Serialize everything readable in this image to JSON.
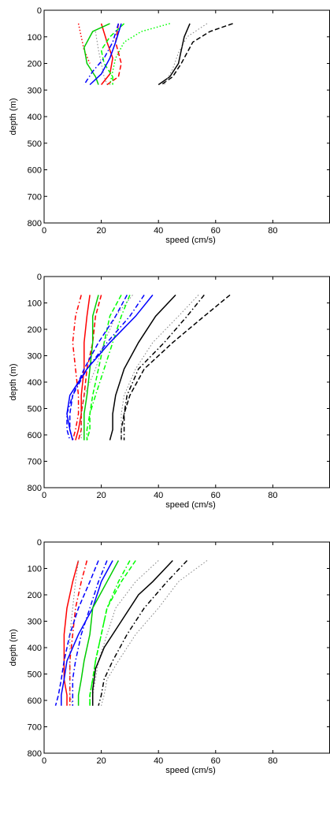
{
  "chart_data": [
    {
      "type": "line",
      "xlabel": "speed (cm/s)",
      "ylabel": "depth (m)",
      "xlim": [
        0,
        100
      ],
      "ylim": [
        0,
        800
      ],
      "y_inverted": true,
      "xticks": [
        "0",
        "20",
        "40",
        "60",
        "80"
      ],
      "yticks": [
        "0",
        "100",
        "200",
        "300",
        "400",
        "500",
        "600",
        "700",
        "800"
      ],
      "series": [
        {
          "color": "#ff0000",
          "style": "dotted",
          "x": [
            12,
            13,
            14,
            16
          ],
          "y": [
            50,
            100,
            150,
            200
          ]
        },
        {
          "color": "#ff0000",
          "style": "solid",
          "x": [
            20,
            22,
            24,
            23,
            20
          ],
          "y": [
            50,
            120,
            180,
            240,
            280
          ]
        },
        {
          "color": "#ff0000",
          "style": "dashed",
          "x": [
            26,
            25,
            27,
            26,
            22
          ],
          "y": [
            50,
            120,
            200,
            250,
            280
          ]
        },
        {
          "color": "#00cc00",
          "style": "solid",
          "x": [
            23,
            17,
            14,
            15,
            18,
            19
          ],
          "y": [
            50,
            80,
            140,
            200,
            250,
            280
          ]
        },
        {
          "color": "#00ff00",
          "style": "dashed",
          "x": [
            28,
            23,
            20,
            21,
            24,
            24
          ],
          "y": [
            50,
            100,
            150,
            200,
            250,
            280
          ]
        },
        {
          "color": "#00ff00",
          "style": "dotted",
          "x": [
            44,
            34,
            28,
            25,
            24,
            23
          ],
          "y": [
            50,
            80,
            120,
            180,
            230,
            280
          ]
        },
        {
          "color": "#0000ff",
          "style": "solid",
          "x": [
            27,
            25,
            23,
            20,
            16
          ],
          "y": [
            50,
            120,
            180,
            240,
            280
          ]
        },
        {
          "color": "#0000ff",
          "style": "dashdot",
          "x": [
            26,
            24,
            21,
            17,
            14
          ],
          "y": [
            50,
            120,
            180,
            230,
            280
          ]
        },
        {
          "color": "#808080",
          "style": "dotted",
          "x": [
            18,
            19,
            20,
            21,
            22
          ],
          "y": [
            80,
            150,
            200,
            250,
            280
          ]
        },
        {
          "color": "#000000",
          "style": "solid",
          "x": [
            51,
            49,
            48,
            47,
            44,
            40
          ],
          "y": [
            50,
            100,
            150,
            200,
            250,
            280
          ]
        },
        {
          "color": "#000000",
          "style": "dashed",
          "x": [
            66,
            58,
            52,
            50,
            48,
            45,
            41
          ],
          "y": [
            50,
            80,
            120,
            160,
            200,
            250,
            280
          ]
        },
        {
          "color": "#808080",
          "style": "dotted",
          "x": [
            57,
            50,
            47,
            45,
            42
          ],
          "y": [
            50,
            100,
            160,
            220,
            280
          ]
        }
      ]
    },
    {
      "type": "line",
      "xlabel": "speed (cm/s)",
      "ylabel": "depth (m)",
      "xlim": [
        0,
        100
      ],
      "ylim": [
        0,
        800
      ],
      "y_inverted": true,
      "xticks": [
        "0",
        "20",
        "40",
        "60",
        "80"
      ],
      "yticks": [
        "0",
        "100",
        "200",
        "300",
        "400",
        "500",
        "600",
        "700",
        "800"
      ],
      "series": [
        {
          "color": "#ff0000",
          "style": "dashdot",
          "x": [
            13,
            11,
            10,
            11,
            12,
            12,
            11,
            10
          ],
          "y": [
            70,
            150,
            250,
            350,
            450,
            520,
            580,
            620
          ]
        },
        {
          "color": "#ff0000",
          "style": "solid",
          "x": [
            16,
            15,
            14,
            14,
            13,
            13,
            12,
            11
          ],
          "y": [
            70,
            150,
            250,
            350,
            450,
            520,
            580,
            620
          ]
        },
        {
          "color": "#ff0000",
          "style": "dashed",
          "x": [
            20,
            18,
            17,
            15,
            14,
            13,
            13,
            12
          ],
          "y": [
            70,
            150,
            250,
            350,
            450,
            520,
            580,
            620
          ]
        },
        {
          "color": "#00cc00",
          "style": "solid",
          "x": [
            19,
            17,
            17,
            16,
            15,
            14,
            14,
            14
          ],
          "y": [
            70,
            150,
            250,
            350,
            450,
            520,
            580,
            620
          ]
        },
        {
          "color": "#00ff00",
          "style": "dashed",
          "x": [
            27,
            23,
            21,
            19,
            17,
            16,
            16,
            15
          ],
          "y": [
            70,
            150,
            250,
            350,
            450,
            520,
            580,
            620
          ]
        },
        {
          "color": "#808080",
          "style": "dotted",
          "x": [
            31,
            25,
            21,
            18,
            14,
            13,
            13,
            13
          ],
          "y": [
            70,
            150,
            250,
            350,
            450,
            520,
            580,
            620
          ]
        },
        {
          "color": "#00ff00",
          "style": "dashdot",
          "x": [
            30,
            27,
            24,
            21,
            18,
            16,
            15,
            15
          ],
          "y": [
            70,
            150,
            250,
            350,
            450,
            520,
            580,
            620
          ]
        },
        {
          "color": "#0000ff",
          "style": "solid",
          "x": [
            38,
            32,
            23,
            15,
            9,
            8,
            9,
            10
          ],
          "y": [
            70,
            150,
            250,
            350,
            450,
            520,
            580,
            620
          ]
        },
        {
          "color": "#0000ff",
          "style": "dashdot",
          "x": [
            35,
            30,
            22,
            15,
            10,
            8,
            8,
            9
          ],
          "y": [
            70,
            150,
            250,
            350,
            450,
            520,
            580,
            620
          ]
        },
        {
          "color": "#0000ff",
          "style": "dashed",
          "x": [
            29,
            25,
            19,
            14,
            10,
            9,
            9,
            10
          ],
          "y": [
            70,
            150,
            250,
            350,
            450,
            520,
            580,
            620
          ]
        },
        {
          "color": "#000000",
          "style": "solid",
          "x": [
            46,
            39,
            33,
            28,
            25,
            24,
            24,
            23
          ],
          "y": [
            70,
            150,
            250,
            350,
            450,
            520,
            580,
            620
          ]
        },
        {
          "color": "#000000",
          "style": "dashed",
          "x": [
            65,
            56,
            45,
            35,
            30,
            28,
            27,
            27
          ],
          "y": [
            70,
            150,
            250,
            350,
            450,
            520,
            580,
            620
          ]
        },
        {
          "color": "#000000",
          "style": "dashdot",
          "x": [
            56,
            50,
            42,
            33,
            29,
            28,
            28,
            28
          ],
          "y": [
            70,
            150,
            250,
            350,
            450,
            520,
            580,
            620
          ]
        },
        {
          "color": "#808080",
          "style": "dotted",
          "x": [
            54,
            47,
            38,
            32,
            28,
            27,
            27,
            27
          ],
          "y": [
            70,
            150,
            250,
            350,
            450,
            520,
            580,
            620
          ]
        }
      ]
    },
    {
      "type": "line",
      "xlabel": "speed (cm/s)",
      "ylabel": "depth (m)",
      "xlim": [
        0,
        100
      ],
      "ylim": [
        0,
        800
      ],
      "y_inverted": true,
      "xticks": [
        "0",
        "20",
        "40",
        "60",
        "80"
      ],
      "yticks": [
        "0",
        "100",
        "200",
        "300",
        "400",
        "500",
        "600",
        "700",
        "800"
      ],
      "series": [
        {
          "color": "#ff0000",
          "style": "solid",
          "x": [
            12,
            10,
            8,
            7,
            7,
            7,
            8,
            8
          ],
          "y": [
            70,
            150,
            250,
            350,
            450,
            520,
            580,
            620
          ]
        },
        {
          "color": "#ff0000",
          "style": "dashdot",
          "x": [
            15,
            13,
            11,
            10,
            9,
            9,
            9,
            9
          ],
          "y": [
            70,
            150,
            250,
            350,
            450,
            520,
            580,
            620
          ]
        },
        {
          "color": "#0000ff",
          "style": "dashed",
          "x": [
            19,
            16,
            12,
            9,
            7,
            6,
            5,
            4
          ],
          "y": [
            70,
            150,
            250,
            350,
            450,
            520,
            580,
            620
          ]
        },
        {
          "color": "#808080",
          "style": "dotted",
          "x": [
            12,
            11,
            10,
            9,
            9,
            9,
            9,
            10
          ],
          "y": [
            70,
            150,
            250,
            350,
            450,
            520,
            580,
            620
          ]
        },
        {
          "color": "#0000ff",
          "style": "solid",
          "x": [
            24,
            20,
            17,
            12,
            8,
            7,
            6,
            6
          ],
          "y": [
            70,
            150,
            250,
            350,
            450,
            520,
            580,
            620
          ]
        },
        {
          "color": "#0000ff",
          "style": "dashdot",
          "x": [
            22,
            19,
            16,
            13,
            11,
            10,
            10,
            10
          ],
          "y": [
            70,
            150,
            250,
            350,
            450,
            520,
            580,
            620
          ]
        },
        {
          "color": "#00cc00",
          "style": "solid",
          "x": [
            26,
            22,
            17,
            16,
            14,
            13,
            12,
            12
          ],
          "y": [
            70,
            150,
            250,
            350,
            450,
            520,
            580,
            620
          ]
        },
        {
          "color": "#00ff00",
          "style": "dashed",
          "x": [
            32,
            27,
            22,
            20,
            18,
            17,
            16,
            16
          ],
          "y": [
            70,
            150,
            250,
            350,
            450,
            520,
            580,
            620
          ]
        },
        {
          "color": "#00ff00",
          "style": "dashdot",
          "x": [
            30,
            26,
            22,
            20,
            18,
            17,
            16,
            16
          ],
          "y": [
            70,
            150,
            250,
            350,
            450,
            520,
            580,
            620
          ]
        },
        {
          "color": "#808080",
          "style": "dotted",
          "x": [
            40,
            32,
            25,
            22,
            19,
            18,
            17,
            17
          ],
          "y": [
            70,
            150,
            250,
            350,
            450,
            520,
            580,
            620
          ]
        },
        {
          "color": "#000000",
          "style": "solid",
          "x": [
            45,
            38,
            33,
            27,
            21,
            18,
            17,
            17
          ],
          "y": [
            70,
            150,
            200,
            300,
            400,
            480,
            560,
            620
          ]
        },
        {
          "color": "#000000",
          "style": "dashdot",
          "x": [
            50,
            43,
            35,
            29,
            24,
            21,
            20,
            19
          ],
          "y": [
            70,
            150,
            250,
            350,
            450,
            520,
            580,
            620
          ]
        },
        {
          "color": "#808080",
          "style": "dotted",
          "x": [
            57,
            47,
            40,
            32,
            26,
            22,
            21,
            20
          ],
          "y": [
            70,
            150,
            250,
            350,
            450,
            520,
            580,
            620
          ]
        }
      ]
    }
  ]
}
